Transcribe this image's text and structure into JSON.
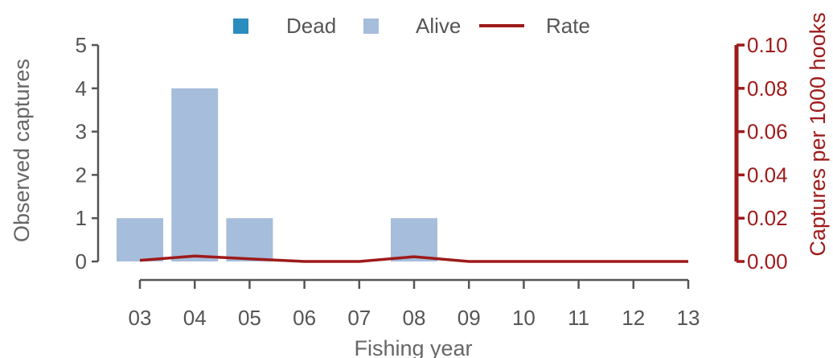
{
  "chart_data": {
    "type": "bar",
    "title": "",
    "xlabel": "Fishing year",
    "ylabel": "Observed captures",
    "y2label": "Captures per 1000 hooks",
    "categories": [
      "03",
      "04",
      "05",
      "06",
      "07",
      "08",
      "09",
      "10",
      "11",
      "12",
      "13"
    ],
    "ylim": [
      0,
      5
    ],
    "y2lim": [
      0,
      0.1
    ],
    "yticks": [
      "0",
      "1",
      "2",
      "3",
      "4",
      "5"
    ],
    "y2ticks": [
      "0.00",
      "0.02",
      "0.04",
      "0.06",
      "0.08",
      "0.10"
    ],
    "legend_position": "top",
    "series": [
      {
        "name": "Dead",
        "kind": "bar",
        "color": "#2b8cbe",
        "values": [
          0,
          0,
          0,
          0,
          0,
          0,
          0,
          0,
          0,
          0,
          0
        ]
      },
      {
        "name": "Alive",
        "kind": "bar",
        "color": "#a6bddb",
        "values": [
          1,
          4,
          1,
          0,
          0,
          1,
          0,
          0,
          0,
          0,
          0
        ]
      },
      {
        "name": "Rate",
        "kind": "line",
        "axis": "right",
        "color": "#9e1a1a",
        "values": [
          0.0005,
          0.0025,
          0.0012,
          0,
          0,
          0.0022,
          0,
          0,
          0,
          0,
          0
        ]
      }
    ],
    "colors": {
      "axis": "#555555",
      "right_axis": "#9e1a1a"
    }
  }
}
